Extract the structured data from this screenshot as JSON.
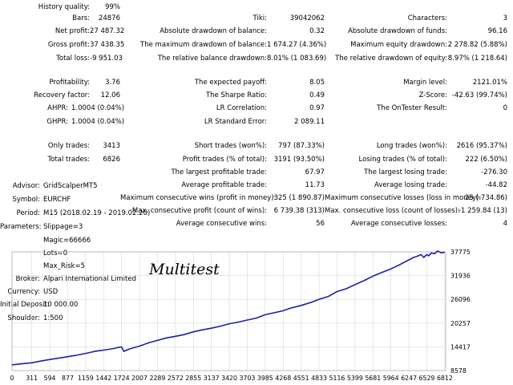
{
  "report": {
    "history_quality": {
      "label": "History quality:",
      "value": "99%"
    },
    "bars": {
      "label": "Bars:",
      "value": "24876"
    },
    "net_profit": {
      "label": "Net profit:",
      "value": "27 487.32"
    },
    "gross_profit": {
      "label": "Gross profit:",
      "value": "37 438.35"
    },
    "total_loss": {
      "label": "Total loss:",
      "value": "-9 951.03"
    },
    "ticks": {
      "label": "Tiki:",
      "value": "39042062"
    },
    "abs_dd_balance": {
      "label": "Absolute drawdown of balance:",
      "value": "0.32"
    },
    "max_dd_balance": {
      "label": "The maximum drawdown of balance:",
      "value": "1 674.27 (4.36%)"
    },
    "rel_dd_balance": {
      "label": "The relative balance drawdown:",
      "value": "8.01% (1 083.69)"
    },
    "characters": {
      "label": "Characters:",
      "value": "3"
    },
    "abs_dd_funds": {
      "label": "Absolute drawdown of funds:",
      "value": "96.16"
    },
    "max_equity_dd": {
      "label": "Maximum equity drawdown:",
      "value": "2 278.82 (5.88%)"
    },
    "rel_dd_equity": {
      "label": "The relative drawdown of equity:",
      "value": "8.97% (1 218.64)"
    },
    "profitability": {
      "label": "Profitability:",
      "value": "3.76"
    },
    "recovery_factor": {
      "label": "Recovery factor:",
      "value": "12.06"
    },
    "ahpr": {
      "label": "AHPR:",
      "value": "1.0004 (0.04%)"
    },
    "ghpr": {
      "label": "GHPR:",
      "value": "1.0004 (0.04%)"
    },
    "expected_payoff": {
      "label": "The expected payoff:",
      "value": "8.05"
    },
    "sharpe": {
      "label": "The Sharpe Ratio:",
      "value": "0.49"
    },
    "lr_correlation": {
      "label": "LR Correlation:",
      "value": "0.97"
    },
    "lr_std_error": {
      "label": "LR Standard Error:",
      "value": "2 089.11"
    },
    "margin_level": {
      "label": "Margin level:",
      "value": "2121.01%"
    },
    "z_score": {
      "label": "Z-Score:",
      "value": "-42.63 (99.74%)"
    },
    "ontester": {
      "label": "The OnTester Result:",
      "value": "0"
    },
    "only_trades": {
      "label": "Only trades:",
      "value": "3413"
    },
    "total_trades": {
      "label": "Total trades:",
      "value": "6826"
    },
    "short_trades": {
      "label": "Short trades (won%):",
      "value": "797 (87.33%)"
    },
    "profit_trades": {
      "label": "Profit trades (% of total):",
      "value": "3191 (93.50%)"
    },
    "largest_profit": {
      "label": "The largest profitable trade:",
      "value": "67.97"
    },
    "avg_profit": {
      "label": "Average profitable trade:",
      "value": "11.73"
    },
    "max_cons_wins": {
      "label": "Maximum consecutive wins (profit in money):",
      "value": "325 (1 890.87)"
    },
    "max_cons_profit": {
      "label": "Max. consecutive profit (count of wins):",
      "value": "6 739.38 (313)"
    },
    "avg_cons_wins": {
      "label": "Average consecutive wins:",
      "value": "56"
    },
    "long_trades": {
      "label": "Long trades (won%):",
      "value": "2616 (95.37%)"
    },
    "losing_trades": {
      "label": "Losing trades (% of total):",
      "value": "222 (6.50%)"
    },
    "largest_loss": {
      "label": "The largest losing trade:",
      "value": "-276.30"
    },
    "avg_loss": {
      "label": "Average losing trade:",
      "value": "-44.82"
    },
    "max_cons_losses": {
      "label": "Maximum consecutive losses (loss in money):",
      "value": "25 (-734.86)"
    },
    "max_cons_loss": {
      "label": "Max. consecutive loss (count of losses):",
      "value": "-1 259.84 (13)"
    },
    "avg_cons_losses": {
      "label": "Average consecutive losses:",
      "value": "4"
    }
  },
  "settings": {
    "advisor": {
      "label": "Advisor:",
      "value": "GridScalperMT5"
    },
    "symbol": {
      "label": "Symbol:",
      "value": "EURCHF"
    },
    "period": {
      "label": "Period:",
      "value": "M15 (2018.02.19 - 2019.02.20)"
    },
    "parameters_label": "Parameters:",
    "parameters": [
      "Slippage=3",
      "Magic=66666",
      "Lots=0",
      "Max_Risk=5"
    ],
    "broker": {
      "label": "Broker:",
      "value": "Alpari International Limited"
    },
    "currency": {
      "label": "Currency:",
      "value": "USD"
    },
    "initial_deposit": {
      "label": "Initial Deposit:",
      "value": "10 000.00"
    },
    "shoulder": {
      "label": "Shoulder:",
      "value": "1:500"
    }
  },
  "chart_data": {
    "type": "line",
    "title": "Multitest",
    "line_color": "#1f1fa8",
    "grid": true,
    "x_ticks": [
      "0",
      "311",
      "594",
      "877",
      "1159",
      "1442",
      "1724",
      "2007",
      "2289",
      "2572",
      "2855",
      "3137",
      "3420",
      "3703",
      "3985",
      "4268",
      "4551",
      "4833",
      "5116",
      "5399",
      "5681",
      "5964",
      "6247",
      "6529",
      "6812"
    ],
    "y_ticks": [
      "37775",
      "31936",
      "26096",
      "20257",
      "14417",
      "8578"
    ],
    "xlim": [
      0,
      6826
    ],
    "ylim": [
      8578,
      37775
    ],
    "series": [
      {
        "x": [
          0,
          120,
          311,
          450,
          594,
          760,
          877,
          1000,
          1159,
          1300,
          1442,
          1600,
          1680,
          1724,
          1760,
          1850,
          2007,
          2150,
          2289,
          2430,
          2572,
          2700,
          2855,
          3000,
          3137,
          3280,
          3420,
          3560,
          3703,
          3850,
          3985,
          4130,
          4268,
          4400,
          4551,
          4700,
          4833,
          4980,
          5116,
          5260,
          5399,
          5540,
          5681,
          5820,
          5964,
          6100,
          6247,
          6320,
          6380,
          6440,
          6480,
          6529,
          6560,
          6600,
          6650,
          6700,
          6760,
          6812
        ],
        "y": [
          10000,
          10200,
          10500,
          10900,
          11300,
          11700,
          12000,
          12300,
          12800,
          13300,
          13600,
          14000,
          14300,
          14400,
          13300,
          13900,
          14600,
          15400,
          16000,
          16600,
          17000,
          17400,
          18100,
          18600,
          19000,
          19500,
          20100,
          20500,
          21000,
          21500,
          22300,
          22800,
          23300,
          24000,
          24600,
          25300,
          26100,
          26800,
          28000,
          28700,
          29700,
          30700,
          31800,
          32700,
          33600,
          34600,
          35800,
          36400,
          36700,
          37100,
          36400,
          37100,
          36800,
          37500,
          37300,
          38000,
          37500,
          37700
        ]
      }
    ]
  }
}
